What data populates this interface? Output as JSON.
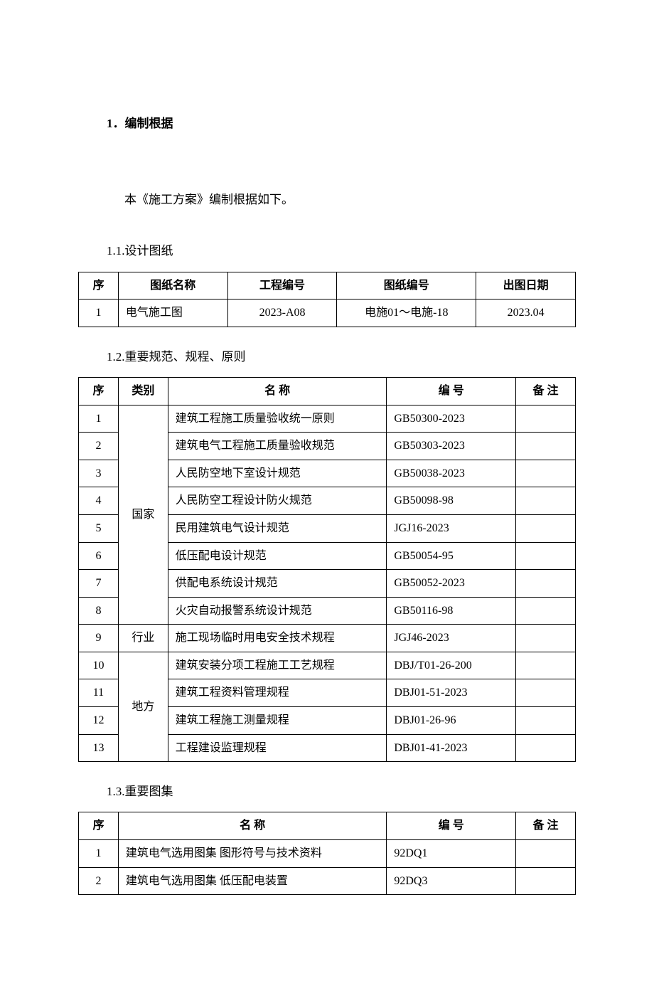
{
  "heading1": "1．编制根据",
  "intro": "本《施工方案》编制根据如下。",
  "section1": {
    "heading": "1.1.设计图纸",
    "headers": [
      "序",
      "图纸名称",
      "工程编号",
      "图纸编号",
      "出图日期"
    ],
    "rows": [
      [
        "1",
        "电气施工图",
        "2023-A08",
        "电施01～电施-18",
        "2023.04"
      ]
    ]
  },
  "section2": {
    "heading": "1.2.重要规范、规程、原则",
    "headers": [
      "序",
      "类别",
      "名 称",
      "编 号",
      "备 注"
    ],
    "categories": {
      "national": "国家",
      "industry": "行业",
      "local": "地方"
    },
    "rows": [
      {
        "seq": "1",
        "catKey": "national",
        "catSpan": 8,
        "name": "建筑工程施工质量验收统一原则",
        "code": "GB50300-2023",
        "note": ""
      },
      {
        "seq": "2",
        "name": "建筑电气工程施工质量验收规范",
        "code": "GB50303-2023",
        "note": ""
      },
      {
        "seq": "3",
        "name": "人民防空地下室设计规范",
        "code": "GB50038-2023",
        "note": ""
      },
      {
        "seq": "4",
        "name": "人民防空工程设计防火规范",
        "code": "GB50098-98",
        "note": ""
      },
      {
        "seq": "5",
        "name": "民用建筑电气设计规范",
        "code": "JGJ16-2023",
        "note": ""
      },
      {
        "seq": "6",
        "name": "低压配电设计规范",
        "code": "GB50054-95",
        "note": ""
      },
      {
        "seq": "7",
        "name": "供配电系统设计规范",
        "code": "GB50052-2023",
        "note": ""
      },
      {
        "seq": "8",
        "name": "火灾自动报警系统设计规范",
        "code": "GB50116-98",
        "note": ""
      },
      {
        "seq": "9",
        "catKey": "industry",
        "catSpan": 1,
        "name": "施工现场临时用电安全技术规程",
        "code": "JGJ46-2023",
        "note": ""
      },
      {
        "seq": "10",
        "catKey": "local",
        "catSpan": 4,
        "name": "建筑安装分项工程施工工艺规程",
        "code": "DBJ/T01-26-200",
        "note": ""
      },
      {
        "seq": "11",
        "name": "建筑工程资料管理规程",
        "code": "DBJ01-51-2023",
        "note": ""
      },
      {
        "seq": "12",
        "name": "建筑工程施工测量规程",
        "code": "DBJ01-26-96",
        "note": ""
      },
      {
        "seq": "13",
        "name": "工程建设监理规程",
        "code": "DBJ01-41-2023",
        "note": ""
      }
    ]
  },
  "section3": {
    "heading": "1.3.重要图集",
    "headers": [
      "序",
      "名 称",
      "编  号",
      "备 注"
    ],
    "rows": [
      [
        "1",
        "建筑电气选用图集 图形符号与技术资料",
        "92DQ1",
        ""
      ],
      [
        "2",
        "建筑电气选用图集 低压配电装置",
        "92DQ3",
        ""
      ]
    ]
  }
}
